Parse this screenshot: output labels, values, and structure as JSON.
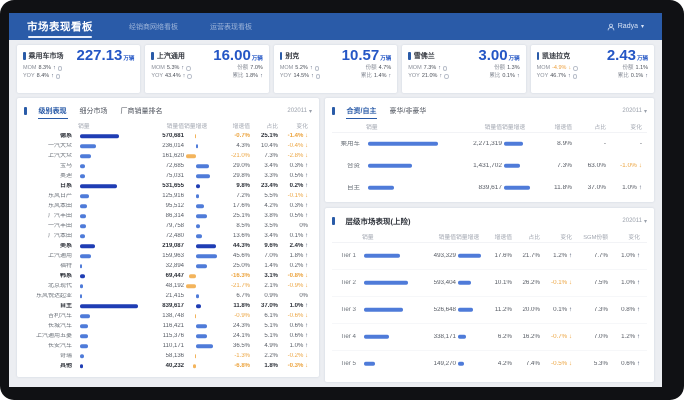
{
  "header": {
    "title": "市场表现看板",
    "nav": [
      {
        "label": "经销商网络看板"
      },
      {
        "label": "运营表现看板"
      }
    ],
    "user": {
      "name": "Radya",
      "caret": "▾"
    }
  },
  "kpi_labels": {
    "mom": "MOM",
    "yoy": "YOY",
    "share": "份额",
    "cum": "累比"
  },
  "kpi_cards": [
    {
      "name": "乘用车市场",
      "value": "227.13",
      "unit": "万辆",
      "mom": "8.3%",
      "mom_dir": "up",
      "yoy": "8.4%",
      "yoy_dir": "up"
    },
    {
      "name": "上汽通用",
      "value": "16.00",
      "unit": "万辆",
      "mom": "5.3%",
      "mom_dir": "up",
      "yoy": "43.4%",
      "yoy_dir": "up",
      "share": "7.0%",
      "cum": "1.8%",
      "cum_dir": "up"
    },
    {
      "name": "别克",
      "value": "10.57",
      "unit": "万辆",
      "mom": "5.2%",
      "mom_dir": "up",
      "yoy": "14.5%",
      "yoy_dir": "up",
      "share": "4.7%",
      "cum": "1.4%",
      "cum_dir": "up"
    },
    {
      "name": "雪佛兰",
      "value": "3.00",
      "unit": "万辆",
      "mom": "7.3%",
      "mom_dir": "up",
      "yoy": "21.0%",
      "yoy_dir": "up",
      "share": "1.3%",
      "cum": "0.1%",
      "cum_dir": "up"
    },
    {
      "name": "凯迪拉克",
      "value": "2.43",
      "unit": "万辆",
      "mom": "-4.9%",
      "mom_dir": "down",
      "yoy": "46.7%",
      "yoy_dir": "up",
      "share": "1.1%",
      "cum": "0.1%",
      "cum_dir": "up"
    }
  ],
  "left_panel": {
    "tabs": [
      "级别表现",
      "细分市场",
      "厂商销量排名"
    ],
    "active_tab": 0,
    "date": "202011",
    "columns": [
      "销量",
      "销量值",
      "销量增速",
      "增速值",
      "占比",
      "变化"
    ],
    "rows": [
      {
        "name": "德系",
        "bold": true,
        "value": "570,681",
        "growth": "-0.7%",
        "share": "25.1%",
        "change": "-1.4%",
        "dir": "down"
      },
      {
        "name": "一汽大众",
        "value": "236,014",
        "growth": "4.3%",
        "share": "10.4%",
        "change": "-0.4%",
        "dir": "down"
      },
      {
        "name": "上汽大众",
        "value": "161,620",
        "growth": "-21.0%",
        "share": "7.3%",
        "change": "-2.8%",
        "dir": "down"
      },
      {
        "name": "宝马",
        "value": "72,685",
        "growth": "29.0%",
        "share": "3.4%",
        "change": "0.3%",
        "dir": "up"
      },
      {
        "name": "奥迪",
        "value": "75,031",
        "growth": "29.8%",
        "share": "3.3%",
        "change": "0.5%",
        "dir": "up"
      },
      {
        "name": "日系",
        "bold": true,
        "value": "531,655",
        "growth": "9.8%",
        "share": "23.4%",
        "change": "0.2%",
        "dir": "up"
      },
      {
        "name": "东风日产",
        "value": "125,916",
        "growth": "7.2%",
        "share": "5.5%",
        "change": "-0.1%",
        "dir": "down"
      },
      {
        "name": "东风本田",
        "value": "95,512",
        "growth": "17.6%",
        "share": "4.2%",
        "change": "0.3%",
        "dir": "up"
      },
      {
        "name": "广汽丰田",
        "value": "86,314",
        "growth": "25.1%",
        "share": "3.8%",
        "change": "0.5%",
        "dir": "up"
      },
      {
        "name": "一汽丰田",
        "value": "79,758",
        "growth": "8.5%",
        "share": "3.5%",
        "change": "0%",
        "dir": "flat"
      },
      {
        "name": "广汽本田",
        "value": "72,480",
        "growth": "13.6%",
        "share": "3.4%",
        "change": "0.1%",
        "dir": "up"
      },
      {
        "name": "美系",
        "bold": true,
        "value": "219,087",
        "growth": "44.3%",
        "share": "9.6%",
        "change": "2.4%",
        "dir": "up"
      },
      {
        "name": "上汽通用",
        "value": "159,963",
        "growth": "45.6%",
        "share": "7.0%",
        "change": "1.8%",
        "dir": "up"
      },
      {
        "name": "福特",
        "value": "32,894",
        "growth": "25.0%",
        "share": "1.4%",
        "change": "0.2%",
        "dir": "up"
      },
      {
        "name": "韩系",
        "bold": true,
        "value": "69,447",
        "growth": "-16.3%",
        "share": "3.1%",
        "change": "-0.8%",
        "dir": "down"
      },
      {
        "name": "北京现代",
        "value": "48,192",
        "growth": "-21.7%",
        "share": "2.1%",
        "change": "-0.9%",
        "dir": "down"
      },
      {
        "name": "东风悦达起亚",
        "value": "21,415",
        "growth": "6.7%",
        "share": "0.9%",
        "change": "0%",
        "dir": "flat"
      },
      {
        "name": "自主",
        "bold": true,
        "value": "839,617",
        "growth": "11.8%",
        "share": "37.0%",
        "change": "1.0%",
        "dir": "up"
      },
      {
        "name": "吉利汽车",
        "value": "138,748",
        "growth": "-0.9%",
        "share": "6.1%",
        "change": "-0.6%",
        "dir": "down"
      },
      {
        "name": "长城汽车",
        "value": "116,421",
        "growth": "24.3%",
        "share": "5.1%",
        "change": "0.6%",
        "dir": "up"
      },
      {
        "name": "上汽通用五菱",
        "value": "115,376",
        "growth": "24.1%",
        "share": "5.1%",
        "change": "0.6%",
        "dir": "up"
      },
      {
        "name": "长安汽车",
        "value": "110,171",
        "growth": "36.5%",
        "share": "4.9%",
        "change": "1.0%",
        "dir": "up"
      },
      {
        "name": "奇瑞",
        "value": "58,136",
        "growth": "-1.3%",
        "share": "2.2%",
        "change": "-0.2%",
        "dir": "down"
      },
      {
        "name": "其他",
        "bold": true,
        "value": "40,232",
        "growth": "-6.8%",
        "share": "1.8%",
        "change": "-0.3%",
        "dir": "down"
      }
    ]
  },
  "jv_panel": {
    "tabs": [
      "合资/自主",
      "豪华/非豪华"
    ],
    "active_tab": 0,
    "date": "202011",
    "columns": [
      "销量",
      "销量值",
      "销量增速",
      "增速值",
      "占比",
      "变化"
    ],
    "rows": [
      {
        "name": "乘用车",
        "value": "2,271,319",
        "growth": "8.9%",
        "share": "-",
        "change": "-",
        "dir": "flat"
      },
      {
        "name": "合资",
        "value": "1,431,702",
        "growth": "7.3%",
        "share": "63.0%",
        "change": "-1.0%",
        "dir": "down"
      },
      {
        "name": "自主",
        "value": "839,617",
        "growth": "11.8%",
        "share": "37.0%",
        "change": "1.0%",
        "dir": "up"
      }
    ]
  },
  "tier_panel": {
    "title": "层级市场表现(上险)",
    "date": "202011",
    "columns": [
      "销量",
      "销量值",
      "销量增速",
      "增速值",
      "占比",
      "变化",
      "SGM份额",
      "变化"
    ],
    "rows": [
      {
        "name": "Tier 1",
        "value": "493,329",
        "growth": "17.6%",
        "share": "21.7%",
        "change": "1.2%",
        "dir": "up",
        "sgm": "7.7%",
        "sgm_change": "1.0%",
        "sgm_dir": "up"
      },
      {
        "name": "Tier 2",
        "value": "593,404",
        "growth": "10.1%",
        "share": "26.2%",
        "change": "-0.1%",
        "dir": "down",
        "sgm": "7.5%",
        "sgm_change": "1.0%",
        "sgm_dir": "up"
      },
      {
        "name": "Tier 3",
        "value": "526,648",
        "growth": "11.2%",
        "share": "20.0%",
        "change": "0.1%",
        "dir": "up",
        "sgm": "7.3%",
        "sgm_change": "0.8%",
        "sgm_dir": "up"
      },
      {
        "name": "Tier 4",
        "value": "338,171",
        "growth": "6.2%",
        "share": "16.2%",
        "change": "-0.7%",
        "dir": "down",
        "sgm": "7.0%",
        "sgm_change": "1.2%",
        "sgm_dir": "up"
      },
      {
        "name": "Tier 5",
        "value": "149,270",
        "growth": "4.2%",
        "share": "7.4%",
        "change": "-0.5%",
        "dir": "down",
        "sgm": "5.3%",
        "sgm_change": "0.6%",
        "sgm_dir": "up"
      }
    ]
  },
  "colors": {
    "header_blue": "#2a5ba8",
    "value_blue": "#2456c5",
    "bar_blue": "#4f7bd9",
    "bar_dark_blue": "#1f3db4",
    "negative_orange": "#eca43f",
    "background": "#eceef2"
  }
}
